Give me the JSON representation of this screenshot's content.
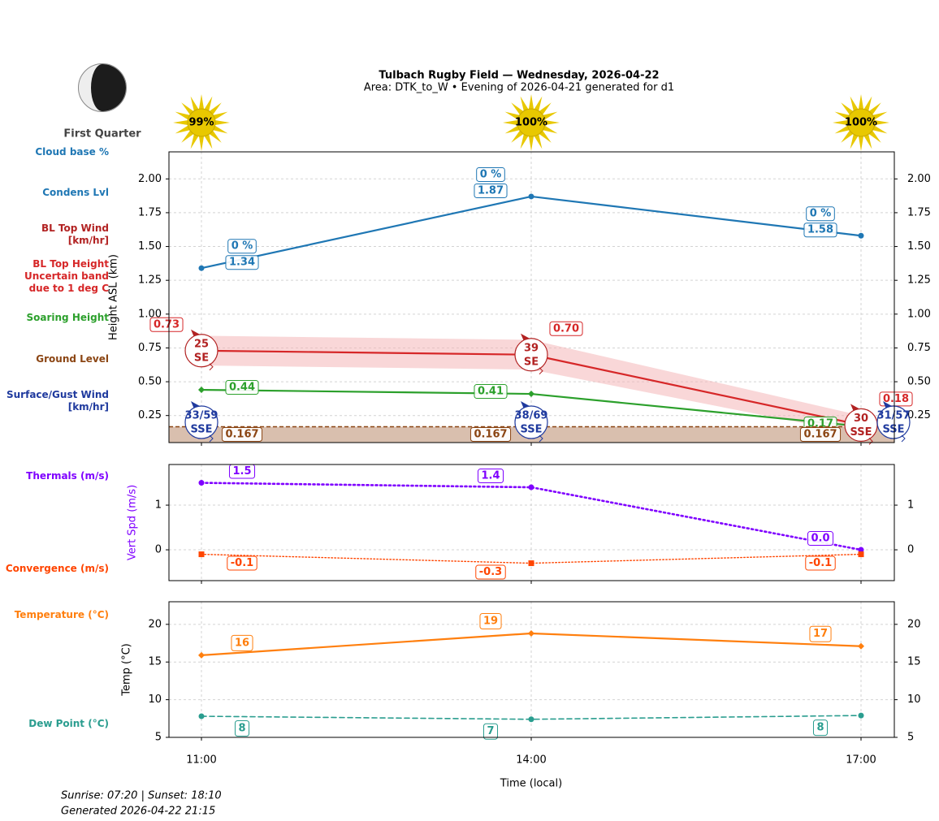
{
  "header": {
    "title": "Tulbach Rugby Field — Wednesday, 2026-04-22",
    "subtitle": "Area: DTK_to_W • Evening of 2026-04-21 generated for d1"
  },
  "moon": {
    "phase": "First Quarter"
  },
  "chart_data": [
    {
      "type": "line",
      "ylabel": "Height ASL (km)",
      "ylim": [
        0.05,
        2.2
      ],
      "yticks": [
        0.25,
        {
          "value": 0.5,
          "label": "0.50"
        },
        0.75,
        {
          "value": 1,
          "label": "1.00"
        },
        1.25,
        {
          "value": 1.5,
          "label": "1.50"
        },
        1.75,
        {
          "value": 2,
          "label": "2.00"
        }
      ],
      "grid": true,
      "sunshine": {
        "values": [
          99,
          100,
          100
        ],
        "value_labels": [
          "99%",
          "100%",
          "100%"
        ],
        "color": "#e8c800"
      },
      "series": [
        {
          "name": "Cloud base %",
          "kind": "label",
          "color": "#1f77b4",
          "values": [
            0,
            0,
            0
          ],
          "value_labels": [
            "0 %",
            "0 %",
            "0 %"
          ]
        },
        {
          "name": "Condens Lvl",
          "kind": "line",
          "color": "#1f77b4",
          "marker": "circle",
          "values": [
            1.34,
            1.87,
            1.58
          ]
        },
        {
          "name": "BL Top Wind\n[km/hr]",
          "kind": "wind",
          "color": "#b22222",
          "values": [
            25,
            39,
            30
          ],
          "directions": [
            "SE",
            "SE",
            "SSE"
          ]
        },
        {
          "name": "BL Top Height\nUncertain band\ndue to 1 deg C",
          "kind": "band-line",
          "color": "#d62728",
          "band_color": "#f4b6b8",
          "marker": "none",
          "values": [
            0.73,
            0.7,
            0.18
          ],
          "value_labels": [
            "0.73",
            "0.70",
            "0.18"
          ],
          "errors": [
            0.11,
            0.11,
            0.07
          ]
        },
        {
          "name": "Soaring Height",
          "kind": "line",
          "color": "#2ca02c",
          "marker": "diamond",
          "values": [
            0.44,
            0.41,
            0.17
          ]
        },
        {
          "name": "Ground Level",
          "kind": "ground",
          "color": "#8b4513",
          "fill": "#d9bfae",
          "values": [
            0.167,
            0.167,
            0.167
          ]
        },
        {
          "name": "Surface/Gust Wind\n[km/hr]",
          "kind": "wind",
          "color": "#1f3a9e",
          "values": [
            33,
            38,
            31
          ],
          "gust": [
            59,
            69,
            57
          ],
          "value_labels": [
            "33/59",
            "38/69",
            "31/57"
          ],
          "directions": [
            "SSE",
            "SSE",
            "SSE"
          ]
        }
      ]
    },
    {
      "type": "line",
      "ylabel": "Vert Spd (m/s)",
      "ylabel_color": "#7f00ff",
      "ylim": [
        -0.69,
        1.91
      ],
      "yticks": [
        0,
        1
      ],
      "grid": true,
      "series": [
        {
          "name": "Thermals (m/s)",
          "kind": "line",
          "color": "#7f00ff",
          "marker": "circle",
          "linestyle": "dotted",
          "values": [
            1.5,
            1.4,
            0.0
          ],
          "value_labels": [
            "1.5",
            "1.4",
            "0.0"
          ]
        },
        {
          "name": "Convergence (m/s)",
          "kind": "line",
          "color": "#ff4500",
          "marker": "square",
          "linestyle": "dotted-thin",
          "values": [
            -0.1,
            -0.3,
            -0.1
          ]
        }
      ]
    },
    {
      "type": "line",
      "ylabel": "Temp (°C)",
      "xlabel": "Time (local)",
      "categories": [
        "11:00",
        "14:00",
        "17:00"
      ],
      "ylim": [
        5,
        23
      ],
      "yticks": [
        5,
        10,
        15,
        20
      ],
      "grid": true,
      "series": [
        {
          "name": "Temperature (°C)",
          "kind": "line",
          "color": "#ff7f0e",
          "marker": "diamond",
          "values": [
            15.9,
            18.8,
            17.1
          ],
          "value_labels": [
            "16",
            "19",
            "17"
          ]
        },
        {
          "name": "Dew Point (°C)",
          "kind": "line",
          "color": "#2a9d8f",
          "marker": "circle",
          "linestyle": "dashed",
          "values": [
            7.8,
            7.4,
            7.9
          ],
          "value_labels": [
            "8",
            "7",
            "8"
          ]
        }
      ]
    }
  ],
  "footer": {
    "sun_times": "Sunrise: 07:20 | Sunset: 18:10",
    "generated": "Generated 2026-04-22 21:15"
  }
}
